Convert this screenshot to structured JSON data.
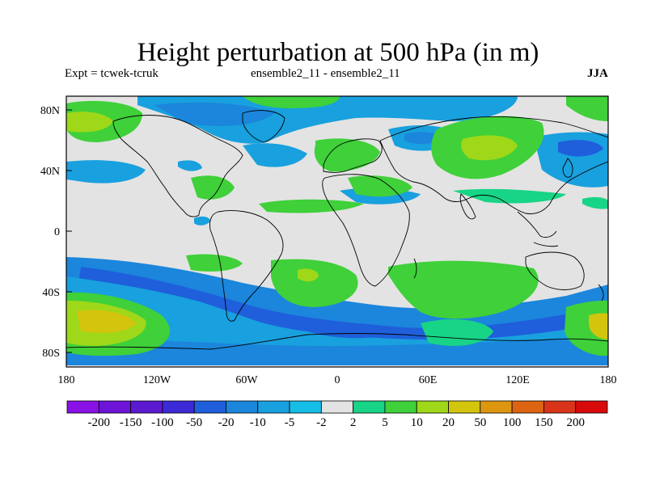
{
  "title": "Height perturbation at 500 hPa (in m)",
  "subtitle_left": "Expt = tcwek-tcruk",
  "subtitle_center": "ensemble2_11 - ensemble2_11",
  "subtitle_right": "JJA",
  "axes": {
    "lat_ticks": [
      "80N",
      "40N",
      "0",
      "40S",
      "80S"
    ],
    "lon_ticks": [
      "180",
      "120W",
      "60W",
      "0",
      "60E",
      "120E",
      "180"
    ]
  },
  "colorbar": {
    "labels": [
      "-200",
      "-150",
      "-100",
      "-50",
      "-20",
      "-10",
      "-5",
      "-2",
      "2",
      "5",
      "10",
      "20",
      "50",
      "100",
      "150",
      "200"
    ],
    "colors": [
      "#8a12e6",
      "#6d14d8",
      "#5b19d0",
      "#3c2ad6",
      "#1f5fdb",
      "#1b86dc",
      "#19a0de",
      "#16bde6",
      "#e3e3e3",
      "#18d486",
      "#3fd03a",
      "#9ed818",
      "#d3c40e",
      "#dc9610",
      "#dc6412",
      "#d8341a",
      "#d80a0a"
    ]
  },
  "colors": {
    "neutral_fill": "#e3e3e3",
    "coast": "#000000"
  }
}
